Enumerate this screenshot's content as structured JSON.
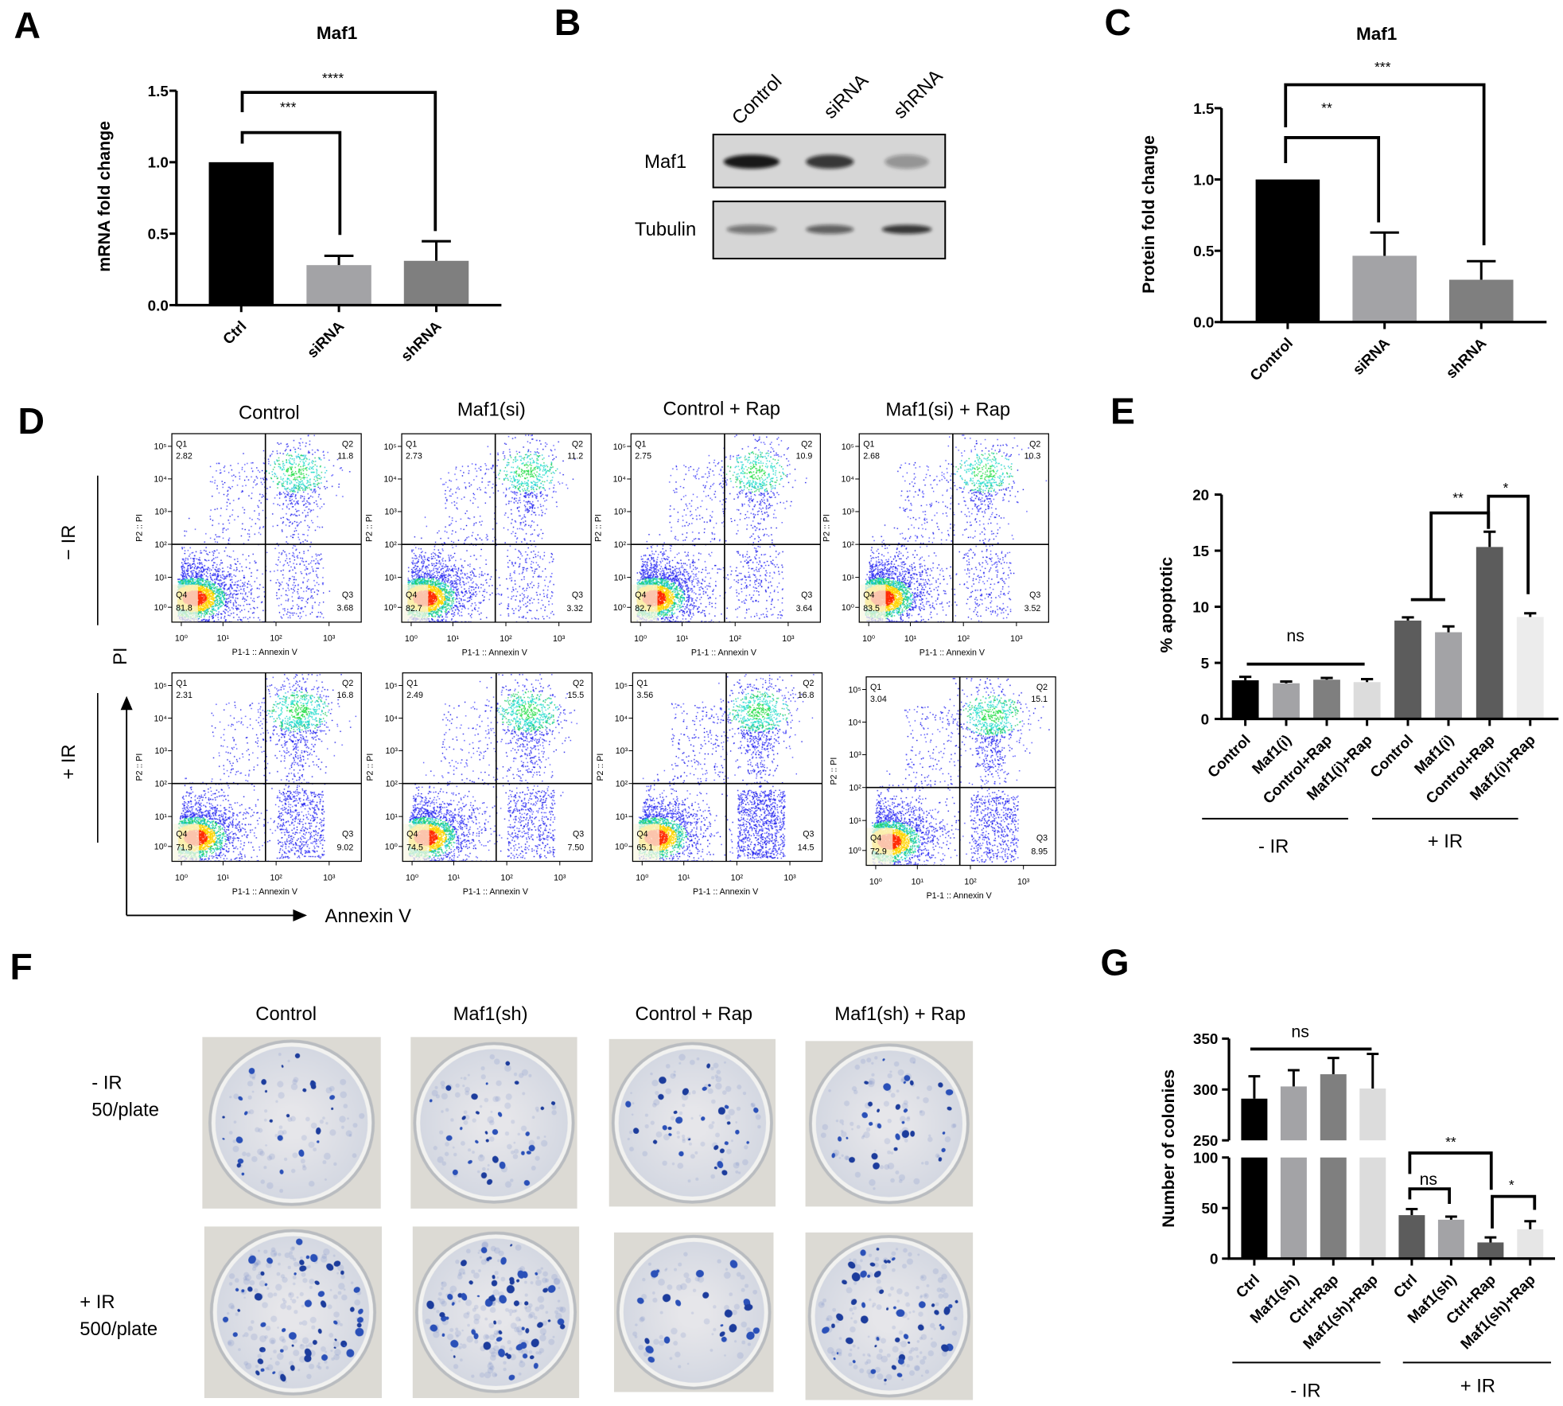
{
  "panel_labels": {
    "A": "A",
    "B": "B",
    "C": "C",
    "D": "D",
    "E": "E",
    "F": "F",
    "G": "G"
  },
  "chart_data": [
    {
      "panel": "A",
      "type": "bar",
      "title": "Maf1",
      "xlabel": "",
      "ylabel": "mRNA fold change",
      "categories": [
        "Ctrl",
        "siRNA",
        "shRNA"
      ],
      "values": [
        1.0,
        0.28,
        0.31
      ],
      "errors": [
        0,
        0.065,
        0.137
      ],
      "ylim": [
        0,
        1.5
      ],
      "yticks": [
        0,
        0.5,
        1.0,
        1.5
      ],
      "ytick_labels": [
        "0.0",
        "0.5",
        "1.0",
        "1.5"
      ],
      "colors": [
        "#000000",
        "#a3a3a6",
        "#7f7f7f"
      ],
      "significance": [
        {
          "from": "Ctrl",
          "to": "siRNA",
          "label": "***"
        },
        {
          "from": "Ctrl",
          "to": "shRNA",
          "label": "****"
        }
      ]
    },
    {
      "panel": "C",
      "type": "bar",
      "title": "Maf1",
      "xlabel": "",
      "ylabel": "Protein fold change",
      "categories": [
        "Control",
        "siRNA",
        "shRNA"
      ],
      "values": [
        1.0,
        0.465,
        0.297
      ],
      "errors": [
        0,
        0.163,
        0.13
      ],
      "ylim": [
        0,
        1.5
      ],
      "yticks": [
        0,
        0.5,
        1.0,
        1.5
      ],
      "ytick_labels": [
        "0.0",
        "0.5",
        "1.0",
        "1.5"
      ],
      "colors": [
        "#000000",
        "#a3a3a6",
        "#7f7f7f"
      ],
      "significance": [
        {
          "from": "Control",
          "to": "siRNA",
          "label": "**"
        },
        {
          "from": "Control",
          "to": "shRNA",
          "label": "***"
        }
      ]
    },
    {
      "panel": "E",
      "type": "bar",
      "title": "",
      "xlabel": "",
      "ylabel": "% apoptotic",
      "categories": [
        "Control",
        "Maf1(i)",
        "Control+Rap",
        "Maf1(i)+Rap",
        "Control",
        "Maf1(i)",
        "Control+Rap",
        "Maf1(i)+Rap"
      ],
      "values": [
        3.45,
        3.18,
        3.5,
        3.28,
        8.77,
        7.73,
        15.33,
        9.09
      ],
      "errors": [
        0.3,
        0.16,
        0.16,
        0.27,
        0.29,
        0.52,
        1.36,
        0.33
      ],
      "ylim": [
        0,
        20
      ],
      "yticks": [
        0,
        5,
        10,
        15,
        20
      ],
      "ytick_labels": [
        "0",
        "5",
        "10",
        "15",
        "20"
      ],
      "colors": [
        "#000000",
        "#a3a3a6",
        "#7f7f7f",
        "#dcdcdc",
        "#5c5c5c",
        "#a3a3a6",
        "#5c5c5c",
        "#ececec"
      ],
      "groups": [
        {
          "label": "- IR",
          "members": [
            0,
            1,
            2,
            3
          ]
        },
        {
          "label": "+ IR",
          "members": [
            4,
            5,
            6,
            7
          ]
        }
      ],
      "significance": [
        {
          "between": "- IR all groups",
          "label": "ns"
        },
        {
          "from": "+ IR Control, Maf1(i)",
          "to": "+ IR Control+Rap",
          "label": "**"
        },
        {
          "from": "+ IR Control+Rap",
          "to": "+ IR Maf1(i)+Rap",
          "label": "*"
        }
      ]
    },
    {
      "panel": "G",
      "type": "bar",
      "title": "",
      "xlabel": "",
      "ylabel": "Number of colonies",
      "categories": [
        "Ctrl",
        "Maf1(sh)",
        "Ctrl+Rap",
        "Maf1(sh)+Rap",
        "Ctrl",
        "Maf1(sh)",
        "Ctrl+Rap",
        "Maf1(sh)+Rap"
      ],
      "values": [
        291,
        303,
        315,
        301,
        43,
        38.5,
        16,
        29
      ],
      "errors": [
        22,
        16,
        16,
        34,
        6,
        3,
        5,
        8
      ],
      "ylim": [
        0,
        350
      ],
      "axis_break": [
        100,
        250
      ],
      "yticks": [
        0,
        50,
        100,
        250,
        300,
        350
      ],
      "ytick_labels": [
        "0",
        "50",
        "100",
        "250",
        "300",
        "350"
      ],
      "colors": [
        "#000000",
        "#a3a3a6",
        "#7f7f7f",
        "#dcdcdc",
        "#5c5c5c",
        "#a3a3a6",
        "#5c5c5c",
        "#e6e6e6"
      ],
      "groups": [
        {
          "label": "- IR",
          "members": [
            0,
            1,
            2,
            3
          ]
        },
        {
          "label": "+ IR",
          "members": [
            4,
            5,
            6,
            7
          ]
        }
      ],
      "significance": [
        {
          "between": "- IR all groups",
          "label": "ns"
        },
        {
          "from": "+ IR Ctrl",
          "to": "+ IR Ctrl+Rap",
          "label": "**"
        },
        {
          "from": "+ IR Ctrl",
          "to": "+ IR Maf1(sh)",
          "label": "ns"
        },
        {
          "from": "+ IR Ctrl+Rap",
          "to": "+ IR Maf1(sh)+Rap",
          "label": "*"
        }
      ]
    }
  ],
  "blot": {
    "lanes": [
      "Control",
      "siRNA",
      "shRNA"
    ],
    "rows": [
      "Maf1",
      "Tubulin"
    ]
  },
  "flow": {
    "columns": [
      "Control",
      "Maf1(si)",
      "Control + Rap",
      "Maf1(si) + Rap"
    ],
    "rows": [
      "− IR",
      "+ IR"
    ],
    "axis_y": "PI",
    "axis_x": "Annexin V",
    "plot_xlabel": "P1-1 :: Annexin V",
    "plot_ylabel": "P2 :: PI",
    "x_ticks": [
      "10⁰",
      "10¹",
      "10²",
      "10³"
    ],
    "y_ticks": [
      "10⁵",
      "10⁴",
      "10³",
      "10²",
      "10¹",
      "10⁰"
    ],
    "quadrant_names": [
      "Q1",
      "Q2",
      "Q3",
      "Q4"
    ],
    "quadrants": [
      [
        [
          "2.82",
          "11.8",
          "3.68",
          "81.8"
        ],
        [
          "2.73",
          "11.2",
          "3.32",
          "82.7"
        ],
        [
          "2.75",
          "10.9",
          "3.64",
          "82.7"
        ],
        [
          "2.68",
          "10.3",
          "3.52",
          "83.5"
        ]
      ],
      [
        [
          "2.31",
          "16.8",
          "9.02",
          "71.9"
        ],
        [
          "2.49",
          "15.5",
          "7.50",
          "74.5"
        ],
        [
          "3.56",
          "16.8",
          "14.5",
          "65.1"
        ],
        [
          "3.04",
          "15.1",
          "8.95",
          "72.9"
        ]
      ]
    ]
  },
  "colony": {
    "columns": [
      "Control",
      "Maf1(sh)",
      "Control + Rap",
      "Maf1(sh) + Rap"
    ],
    "rows": [
      {
        "condition": "- IR",
        "density": "50/plate"
      },
      {
        "condition": "+ IR",
        "density": "500/plate"
      }
    ]
  }
}
